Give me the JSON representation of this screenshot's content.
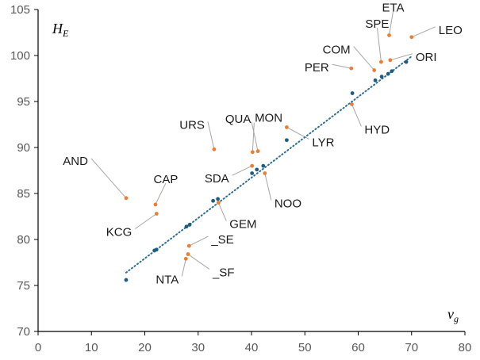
{
  "chart_data": {
    "type": "scatter",
    "xlabel": "v",
    "xlabel_sub": "g",
    "ylabel": "H",
    "ylabel_sub": "E",
    "xlim": [
      0,
      80
    ],
    "ylim": [
      70,
      105
    ],
    "xticks": [
      0,
      10,
      20,
      30,
      40,
      50,
      60,
      70,
      80
    ],
    "yticks": [
      70,
      75,
      80,
      85,
      90,
      95,
      100,
      105
    ],
    "grid": false,
    "colors": {
      "observed": "#ED7D31",
      "fitted": "#1F5C82",
      "trend": "#2E6E95",
      "leader": "#A6A6A6",
      "axis": "#000000"
    },
    "series": [
      {
        "key": "observed",
        "points": [
          {
            "x": 16.5,
            "y": 84.5,
            "label": "AND"
          },
          {
            "x": 22.0,
            "y": 83.8,
            "label": "CAP"
          },
          {
            "x": 22.2,
            "y": 82.8,
            "label": "KCG"
          },
          {
            "x": 28.3,
            "y": 79.3,
            "label": "_SE"
          },
          {
            "x": 28.1,
            "y": 78.4,
            "label": "_SF"
          },
          {
            "x": 27.7,
            "y": 77.9,
            "label": "NTA"
          },
          {
            "x": 33.0,
            "y": 89.8,
            "label": "URS"
          },
          {
            "x": 33.8,
            "y": 84.0,
            "label": "GEM"
          },
          {
            "x": 40.1,
            "y": 88.0,
            "label": "SDA"
          },
          {
            "x": 40.2,
            "y": 89.5,
            "label": "QUA"
          },
          {
            "x": 41.2,
            "y": 89.6,
            "label": "MON"
          },
          {
            "x": 42.5,
            "y": 87.2,
            "label": "NOO"
          },
          {
            "x": 46.6,
            "y": 92.2,
            "label": "LYR"
          },
          {
            "x": 58.8,
            "y": 94.7,
            "label": "HYD"
          },
          {
            "x": 58.7,
            "y": 98.6,
            "label": "PER"
          },
          {
            "x": 63.0,
            "y": 98.4,
            "label": "COM"
          },
          {
            "x": 64.3,
            "y": 99.3,
            "label": "SPE"
          },
          {
            "x": 65.8,
            "y": 102.2,
            "label": "ETA"
          },
          {
            "x": 66.0,
            "y": 99.5,
            "label": "ORI"
          },
          {
            "x": 70.0,
            "y": 102.0,
            "label": "LEO"
          }
        ]
      },
      {
        "key": "fitted",
        "points": [
          {
            "x": 16.5,
            "y": 75.6
          },
          {
            "x": 21.8,
            "y": 78.8
          },
          {
            "x": 22.2,
            "y": 78.9
          },
          {
            "x": 27.8,
            "y": 81.4
          },
          {
            "x": 28.4,
            "y": 81.6
          },
          {
            "x": 32.8,
            "y": 84.2
          },
          {
            "x": 33.7,
            "y": 84.4
          },
          {
            "x": 40.1,
            "y": 87.2
          },
          {
            "x": 41.0,
            "y": 87.6
          },
          {
            "x": 42.2,
            "y": 88.0
          },
          {
            "x": 46.6,
            "y": 90.8
          },
          {
            "x": 58.9,
            "y": 95.9
          },
          {
            "x": 63.2,
            "y": 97.3
          },
          {
            "x": 64.4,
            "y": 97.7
          },
          {
            "x": 65.6,
            "y": 98.0
          },
          {
            "x": 66.3,
            "y": 98.3
          },
          {
            "x": 69.0,
            "y": 99.3
          }
        ]
      }
    ],
    "trendline": {
      "style": "dotted",
      "x": [
        16.5,
        70.0
      ],
      "y": [
        76.4,
        99.9
      ]
    }
  }
}
